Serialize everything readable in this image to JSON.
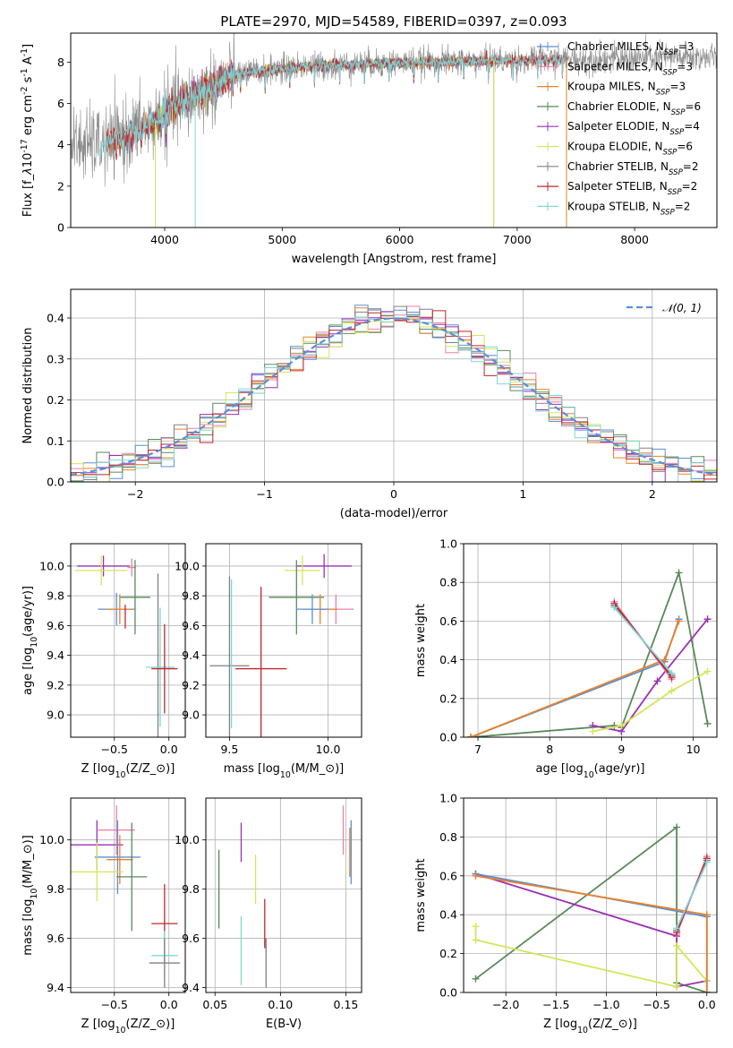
{
  "chart_data": [
    {
      "type": "line",
      "title": "PLATE=2970, MJD=54589, FIBERID=0397, z=0.093",
      "xlabel": "wavelength [Angstrom, rest frame]",
      "ylabel": "Flux [f$_\\lambda$10$^{-17}$ erg cm$^{-2}$ s$^{-1}$ A$^{-1}$]",
      "xlim": [
        3200,
        8700
      ],
      "ylim": [
        0,
        9.4
      ],
      "xticks": [
        "4000",
        "5000",
        "6000",
        "7000",
        "8000"
      ],
      "yticks": [
        "0",
        "2",
        "4",
        "6",
        "8"
      ],
      "grid": false,
      "legend_position": "right",
      "series": [
        {
          "name": "Chabrier MILES, N_SSP=3",
          "color": "#5b8fd6",
          "x_range": [
            3500,
            7420
          ]
        },
        {
          "name": "Salpeter MILES, N_SSP=3",
          "color": "#f07fb0",
          "x_range": [
            3500,
            7420
          ]
        },
        {
          "name": "Kroupa MILES, N_SSP=3",
          "color": "#e8822a",
          "x_range": [
            3500,
            7420
          ]
        },
        {
          "name": "Chabrier ELODIE, N_SSP=6",
          "color": "#5a8a5a",
          "x_range": [
            3900,
            6800
          ]
        },
        {
          "name": "Salpeter ELODIE, N_SSP=4",
          "color": "#9b2fb5",
          "x_range": [
            3900,
            6800
          ]
        },
        {
          "name": "Kroupa ELODIE, N_SSP=6",
          "color": "#d4e65a",
          "x_range": [
            3900,
            6800
          ]
        },
        {
          "name": "Chabrier STELIB, N_SSP=2",
          "color": "#808080",
          "x_range": [
            3200,
            8700
          ]
        },
        {
          "name": "Salpeter STELIB, N_SSP=2",
          "color": "#c0272d",
          "x_range": [
            3500,
            7420
          ]
        },
        {
          "name": "Kroupa STELIB, N_SSP=2",
          "color": "#7fd7d7",
          "x_range": [
            3450,
            7420
          ]
        }
      ]
    },
    {
      "type": "line",
      "xlabel": "(data-model)/error",
      "ylabel": "Normed distribution",
      "xlim": [
        -2.5,
        2.5
      ],
      "ylim": [
        0,
        0.47
      ],
      "xticks": [
        "−2",
        "−1",
        "0",
        "1",
        "2"
      ],
      "yticks": [
        "0.0",
        "0.1",
        "0.2",
        "0.3",
        "0.4"
      ],
      "grid": true,
      "legend": "𝒩(0, 1)",
      "reference_curve": {
        "name": "N(0,1)",
        "mean": 0,
        "sigma": 1,
        "color": "#5b8fd6"
      },
      "histogram_bins": {
        "start": -2.5,
        "width": 0.1,
        "count": 50
      },
      "histograms": "9 step histograms, one per fit, scattered around the N(0,1) curve"
    },
    {
      "type": "scatter",
      "xlabel": "Z [log$_{10}$(Z/Z$_\\odot$)]",
      "ylabel": "age  [log$_{10}$(age/yr)]",
      "xlim": [
        -0.9,
        0.15
      ],
      "ylim": [
        8.85,
        10.15
      ],
      "xticks": [
        "−0.5",
        "0.0"
      ],
      "yticks": [
        "9.0",
        "9.2",
        "9.4",
        "9.6",
        "9.8",
        "10.0"
      ],
      "grid": true,
      "errorbars": [
        {
          "color": "#9b2fb5",
          "x": -0.6,
          "xerr": 0.24,
          "y": 10.0,
          "yerr": 0.07
        },
        {
          "color": "#d4e65a",
          "x": -0.62,
          "xerr": 0.24,
          "y": 9.97,
          "yerr": 0.1
        },
        {
          "color": "#f07fb0",
          "x": -0.34,
          "xerr": 0.04,
          "y": 9.99,
          "yerr": 0.06
        },
        {
          "color": "#5a8a5a",
          "x": -0.31,
          "xerr": 0.14,
          "y": 9.79,
          "yerr": 0.25
        },
        {
          "color": "#5b8fd6",
          "x": -0.48,
          "xerr": 0.17,
          "y": 9.71,
          "yerr": 0.11
        },
        {
          "color": "#e8822a",
          "x": -0.45,
          "xerr": 0.12,
          "y": 9.71,
          "yerr": 0.1
        },
        {
          "color": "#c0272d",
          "x": -0.4,
          "xerr": 0.0,
          "y": 9.66,
          "yerr": 0.08
        },
        {
          "color": "#808080",
          "x": -0.1,
          "xerr": 0.0,
          "y": 9.4,
          "yerr": 0.55
        },
        {
          "color": "#7fd7d7",
          "x": -0.08,
          "xerr": 0.13,
          "y": 9.32,
          "yerr": 0.4
        },
        {
          "color": "#c0272d",
          "x": -0.04,
          "xerr": 0.12,
          "y": 9.31,
          "yerr": 0.3
        }
      ]
    },
    {
      "type": "scatter",
      "xlabel": "mass [log$_{10}$(M/M$_\\odot$)]",
      "xlim": [
        9.38,
        10.17
      ],
      "ylim": [
        8.85,
        10.15
      ],
      "xticks": [
        "9.5",
        "10.0"
      ],
      "yticks": [
        "9.0",
        "9.2",
        "9.4",
        "9.6",
        "9.8",
        "10.0"
      ],
      "grid": true,
      "errorbars": [
        {
          "color": "#9b2fb5",
          "x": 9.98,
          "xerr": 0.14,
          "y": 10.0,
          "yerr": 0.08
        },
        {
          "color": "#d4e65a",
          "x": 9.87,
          "xerr": 0.09,
          "y": 9.97,
          "yerr": 0.1
        },
        {
          "color": "#f07fb0",
          "x": 10.04,
          "xerr": 0.09,
          "y": 9.71,
          "yerr": 0.1
        },
        {
          "color": "#5a8a5a",
          "x": 9.84,
          "xerr": 0.14,
          "y": 9.79,
          "yerr": 0.25
        },
        {
          "color": "#e8822a",
          "x": 9.96,
          "xerr": 0.09,
          "y": 9.71,
          "yerr": 0.1
        },
        {
          "color": "#5b8fd6",
          "x": 9.92,
          "xerr": 0.08,
          "y": 9.71,
          "yerr": 0.1
        },
        {
          "color": "#c0272d",
          "x": 9.66,
          "xerr": 0.13,
          "y": 9.31,
          "yerr": 0.55
        },
        {
          "color": "#808080",
          "x": 9.5,
          "xerr": 0.1,
          "y": 9.33,
          "yerr": 0.6
        },
        {
          "color": "#7fd7d7",
          "x": 9.51,
          "xerr": 0.0,
          "y": 9.41,
          "yerr": 0.5
        }
      ]
    },
    {
      "type": "line",
      "xlabel": "age  [log$_{10}$(age/yr)]",
      "ylabel": "mass weight",
      "xlim": [
        6.8,
        10.33
      ],
      "ylim": [
        0,
        1.0
      ],
      "xticks": [
        "7",
        "8",
        "9",
        "10"
      ],
      "yticks": [
        "0.0",
        "0.2",
        "0.4",
        "0.6",
        "0.8",
        "1.0"
      ],
      "grid": true,
      "series": [
        {
          "color": "#5a8a5a",
          "x": [
            6.9,
            8.9,
            9.0,
            9.8,
            10.2
          ],
          "y": [
            0.0,
            0.06,
            0.05,
            0.85,
            0.07
          ]
        },
        {
          "color": "#9b2fb5",
          "x": [
            8.6,
            9.0,
            9.5,
            10.2
          ],
          "y": [
            0.06,
            0.03,
            0.29,
            0.61
          ]
        },
        {
          "color": "#d4e65a",
          "x": [
            8.6,
            9.0,
            9.7,
            10.2
          ],
          "y": [
            0.03,
            0.06,
            0.24,
            0.34
          ]
        },
        {
          "color": "#5b8fd6",
          "x": [
            6.9,
            9.6,
            9.8
          ],
          "y": [
            0.0,
            0.39,
            0.61
          ]
        },
        {
          "color": "#e8822a",
          "x": [
            6.9,
            9.6,
            9.8
          ],
          "y": [
            0.0,
            0.4,
            0.6
          ]
        },
        {
          "color": "#f07fb0",
          "x": [
            8.9,
            9.7
          ],
          "y": [
            0.7,
            0.3
          ]
        },
        {
          "color": "#808080",
          "x": [
            8.9,
            9.7
          ],
          "y": [
            0.68,
            0.32
          ]
        },
        {
          "color": "#c0272d",
          "x": [
            8.9,
            9.7
          ],
          "y": [
            0.69,
            0.31
          ]
        },
        {
          "color": "#7fd7d7",
          "x": [
            8.9,
            9.7
          ],
          "y": [
            0.67,
            0.33
          ]
        }
      ]
    },
    {
      "type": "scatter",
      "xlabel": "Z [log$_{10}$(Z/Z$_\\odot$)]",
      "ylabel": "mass [log$_{10}$(M/M$_\\odot$)]",
      "xlim": [
        -0.9,
        0.15
      ],
      "ylim": [
        9.38,
        10.17
      ],
      "xticks": [
        "−0.5",
        "0.0"
      ],
      "yticks": [
        "9.4",
        "9.6",
        "9.8",
        "10.0"
      ],
      "grid": true,
      "errorbars": [
        {
          "color": "#9b2fb5",
          "x": -0.66,
          "xerr": 0.24,
          "y": 9.98,
          "yerr": 0.1
        },
        {
          "color": "#f07fb0",
          "x": -0.48,
          "xerr": 0.17,
          "y": 10.04,
          "yerr": 0.1
        },
        {
          "color": "#5b8fd6",
          "x": -0.47,
          "xerr": 0.21,
          "y": 9.93,
          "yerr": 0.15
        },
        {
          "color": "#e8822a",
          "x": -0.45,
          "xerr": 0.12,
          "y": 9.92,
          "yerr": 0.1
        },
        {
          "color": "#d4e65a",
          "x": -0.66,
          "xerr": 0.24,
          "y": 9.87,
          "yerr": 0.12
        },
        {
          "color": "#5a8a5a",
          "x": -0.34,
          "xerr": 0.14,
          "y": 9.85,
          "yerr": 0.22
        },
        {
          "color": "#c0272d",
          "x": -0.04,
          "xerr": 0.12,
          "y": 9.66,
          "yerr": 0.16
        },
        {
          "color": "#7fd7d7",
          "x": -0.04,
          "xerr": 0.12,
          "y": 9.53,
          "yerr": 0.1
        },
        {
          "color": "#808080",
          "x": -0.04,
          "xerr": 0.14,
          "y": 9.5,
          "yerr": 0.1
        }
      ]
    },
    {
      "type": "scatter",
      "xlabel": "E(B-V)",
      "xlim": [
        0.043,
        0.162
      ],
      "ylim": [
        9.38,
        10.17
      ],
      "xticks": [
        "0.05",
        "0.10",
        "0.15"
      ],
      "yticks": [
        "9.4",
        "9.6",
        "9.8",
        "10.0"
      ],
      "grid": true,
      "errorbars": [
        {
          "color": "#5a8a5a",
          "x": 0.053,
          "xerr": 0.0,
          "y": 9.8,
          "yerr": 0.16
        },
        {
          "color": "#9b2fb5",
          "x": 0.07,
          "xerr": 0.0,
          "y": 9.99,
          "yerr": 0.08
        },
        {
          "color": "#7fd7d7",
          "x": 0.07,
          "xerr": 0.0,
          "y": 9.55,
          "yerr": 0.14
        },
        {
          "color": "#d4e65a",
          "x": 0.081,
          "xerr": 0.0,
          "y": 9.84,
          "yerr": 0.1
        },
        {
          "color": "#c0272d",
          "x": 0.088,
          "xerr": 0.0,
          "y": 9.66,
          "yerr": 0.1
        },
        {
          "color": "#808080",
          "x": 0.089,
          "xerr": 0.0,
          "y": 9.5,
          "yerr": 0.1
        },
        {
          "color": "#f07fb0",
          "x": 0.148,
          "xerr": 0.0,
          "y": 10.04,
          "yerr": 0.1
        },
        {
          "color": "#e8822a",
          "x": 0.153,
          "xerr": 0.0,
          "y": 9.95,
          "yerr": 0.1
        },
        {
          "color": "#5b8fd6",
          "x": 0.154,
          "xerr": 0.0,
          "y": 9.95,
          "yerr": 0.13
        }
      ]
    },
    {
      "type": "line",
      "xlabel": "Z [log$_{10}$(Z/Z$_\\odot$)]",
      "ylabel": "mass weight",
      "xlim": [
        -2.42,
        0.1
      ],
      "ylim": [
        0,
        1.0
      ],
      "xticks": [
        "−2.0",
        "−1.5",
        "−1.0",
        "−0.5",
        "0.0"
      ],
      "yticks": [
        "0.0",
        "0.2",
        "0.4",
        "0.6",
        "0.8",
        "1.0"
      ],
      "grid": true,
      "series": [
        {
          "color": "#5a8a5a",
          "x": [
            -2.3,
            -0.3,
            -0.3,
            0.0
          ],
          "y": [
            0.07,
            0.85,
            0.05,
            0.0
          ]
        },
        {
          "color": "#9b2fb5",
          "x": [
            -2.3,
            -0.3,
            -0.3,
            0.0
          ],
          "y": [
            0.61,
            0.29,
            0.03,
            0.06
          ]
        },
        {
          "color": "#d4e65a",
          "x": [
            -2.3,
            -2.3,
            -0.3,
            -0.3,
            0.0
          ],
          "y": [
            0.34,
            0.27,
            0.03,
            0.24,
            0.06
          ]
        },
        {
          "color": "#5b8fd6",
          "x": [
            -2.3,
            0.0,
            0.0
          ],
          "y": [
            0.61,
            0.39,
            0.0
          ]
        },
        {
          "color": "#e8822a",
          "x": [
            -2.3,
            0.0,
            0.0
          ],
          "y": [
            0.6,
            0.4,
            0.0
          ]
        },
        {
          "color": "#f07fb0",
          "x": [
            -0.3,
            0.0
          ],
          "y": [
            0.3,
            0.7
          ]
        },
        {
          "color": "#808080",
          "x": [
            -0.3,
            0.0
          ],
          "y": [
            0.32,
            0.68
          ]
        },
        {
          "color": "#c0272d",
          "x": [
            -0.3,
            0.0
          ],
          "y": [
            0.31,
            0.69
          ]
        },
        {
          "color": "#7fd7d7",
          "x": [
            -0.3,
            0.0
          ],
          "y": [
            0.33,
            0.67
          ]
        }
      ]
    }
  ]
}
